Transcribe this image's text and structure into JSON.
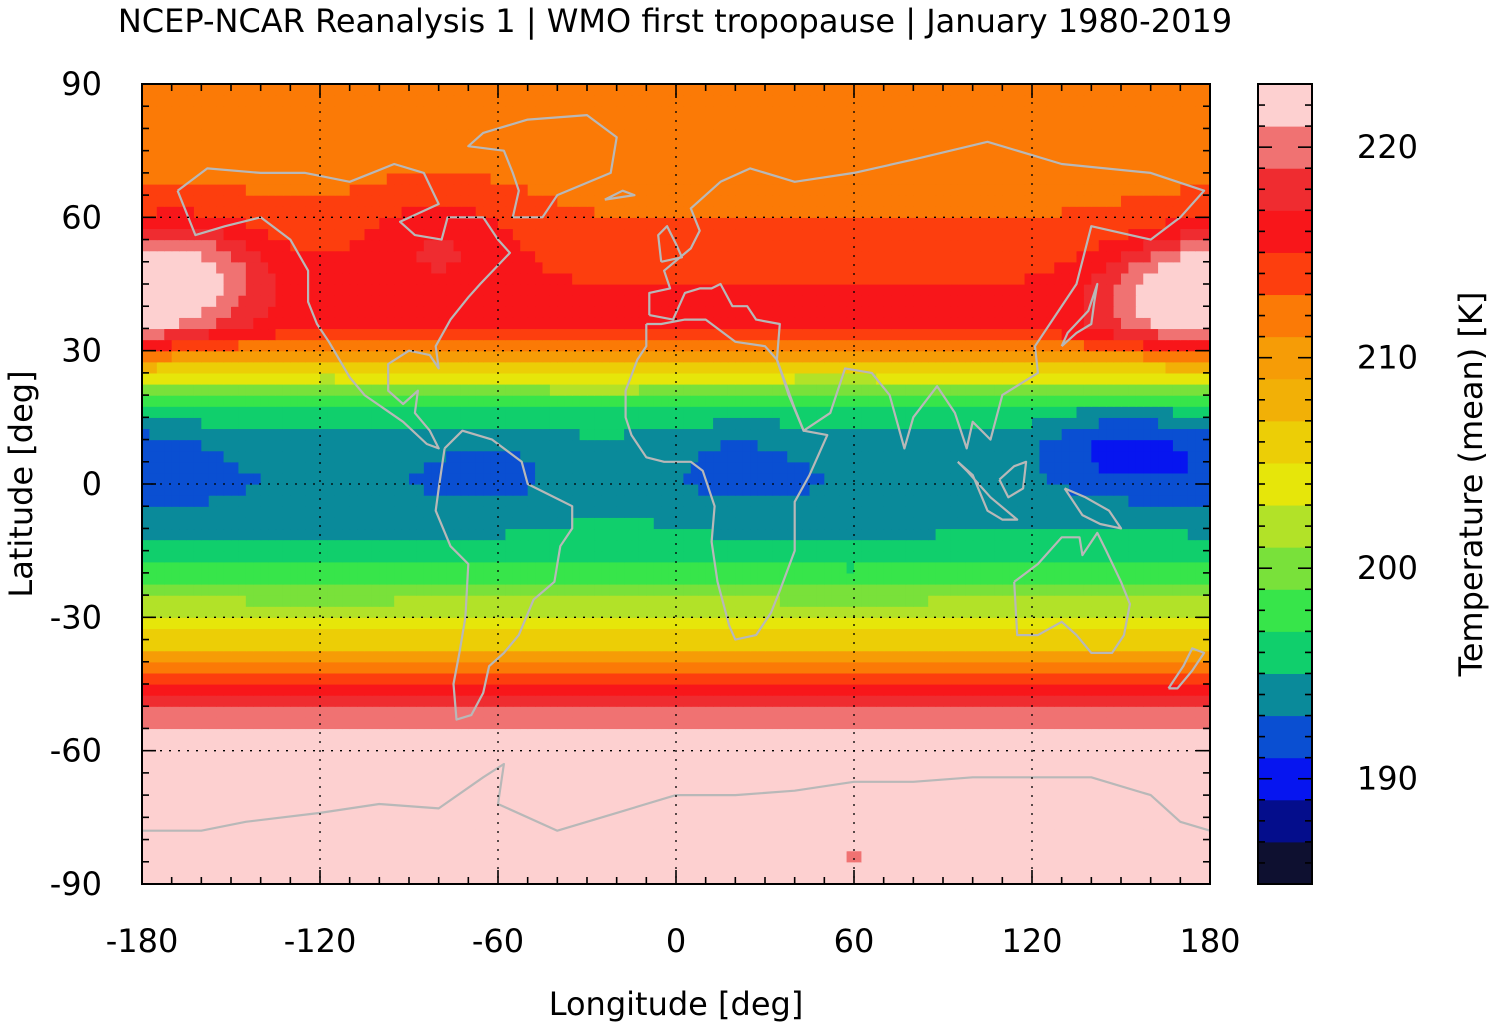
{
  "title": "NCEP-NCAR Reanalysis 1 | WMO first tropopause | January 1980-2019",
  "chart_data": {
    "type": "heatmap",
    "title": "NCEP-NCAR Reanalysis 1 | WMO first tropopause | January 1980-2019",
    "xlabel": "Longitude [deg]",
    "ylabel": "Latitude [deg]",
    "colorbar_label": "Temperature (mean) [K]",
    "xlim": [
      -180,
      180
    ],
    "ylim": [
      -90,
      90
    ],
    "xticks": [
      -180,
      -120,
      -60,
      0,
      60,
      120,
      180
    ],
    "xtick_labels": [
      "-180",
      "-120",
      "-60",
      "0",
      "60",
      "120",
      "180"
    ],
    "yticks": [
      -90,
      -60,
      -30,
      0,
      30,
      60,
      90
    ],
    "ytick_labels": [
      "-90",
      "-60",
      "-30",
      "0",
      "30",
      "60",
      "90"
    ],
    "colorbar_range": [
      185,
      223
    ],
    "colorbar_ticks": [
      190,
      200,
      210,
      220
    ],
    "colorbar_tick_labels": [
      "190",
      "200",
      "210",
      "220"
    ],
    "colormap": [
      "#0e1030",
      "#040d8c",
      "#0615f0",
      "#0a4fd2",
      "#0a8a9a",
      "#10cf6c",
      "#37e54a",
      "#79e13a",
      "#b2e228",
      "#e6e60a",
      "#ecce06",
      "#f2b006",
      "#f69c06",
      "#fb7a06",
      "#fd3e0e",
      "#f8161a",
      "#ef2c30",
      "#f07272",
      "#fdd0d0"
    ],
    "zonal_profile_K": [
      {
        "lat": -90,
        "value": 222.5
      },
      {
        "lat": -60,
        "value": 222.0
      },
      {
        "lat": -52,
        "value": 220.5
      },
      {
        "lat": -47,
        "value": 217.0
      },
      {
        "lat": -42,
        "value": 212.5
      },
      {
        "lat": -37,
        "value": 207.5
      },
      {
        "lat": -32,
        "value": 204.0
      },
      {
        "lat": -25,
        "value": 200.5
      },
      {
        "lat": -18,
        "value": 197.0
      },
      {
        "lat": -10,
        "value": 195.0
      },
      {
        "lat": 0,
        "value": 194.0
      },
      {
        "lat": 10,
        "value": 194.5
      },
      {
        "lat": 17,
        "value": 197.0
      },
      {
        "lat": 22,
        "value": 201.5
      },
      {
        "lat": 26,
        "value": 205.5
      },
      {
        "lat": 30,
        "value": 211.0
      },
      {
        "lat": 35,
        "value": 215.5
      },
      {
        "lat": 45,
        "value": 215.0
      },
      {
        "lat": 60,
        "value": 213.0
      },
      {
        "lat": 75,
        "value": 212.0
      },
      {
        "lat": 90,
        "value": 212.0
      }
    ],
    "regional_anomalies": [
      {
        "lon": -175,
        "lat": 2,
        "value": 192.0
      },
      {
        "lon": -60,
        "lat": 2,
        "value": 192.0
      },
      {
        "lon": 15,
        "lat": 4,
        "value": 192.5
      },
      {
        "lon": 150,
        "lat": 8,
        "value": 190.0
      },
      {
        "lon": -165,
        "lat": 48,
        "value": 221.0
      },
      {
        "lon": 170,
        "lat": 42,
        "value": 222.5
      },
      {
        "lon": -80,
        "lat": 55,
        "value": 217.0
      },
      {
        "lon": 60,
        "lat": -84,
        "value": 221.0
      }
    ]
  }
}
